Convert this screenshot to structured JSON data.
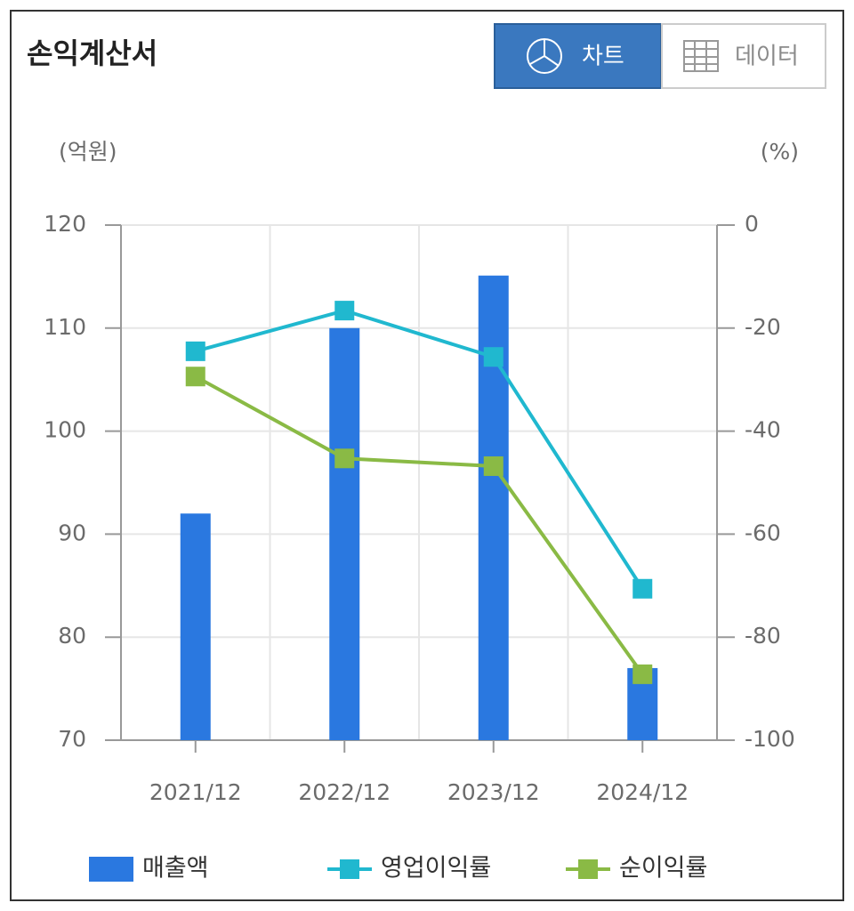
{
  "tabs": [
    "차트",
    "데이터"
  ],
  "chart_data": {
    "type": "bar-line",
    "title": "손익계산서",
    "y_label": "(억원)",
    "y2_label": "(%)",
    "categories": [
      "2021/12",
      "2022/12",
      "2023/12",
      "2024/12"
    ],
    "series": [
      {
        "name": "매출액",
        "type": "bar",
        "color": "#2a78e0",
        "values": [
          92.0,
          110.0,
          115.1,
          77.0
        ]
      },
      {
        "name": "영업이익률",
        "type": "line",
        "axis": "y2",
        "color": "#20b8cf",
        "values": [
          -24.5,
          -16.6,
          -25.6,
          -70.6
        ]
      },
      {
        "name": "순이익률",
        "type": "line",
        "axis": "y2",
        "color": "#8aba45",
        "values": [
          -29.4,
          -45.3,
          -46.8,
          -87.2
        ]
      }
    ],
    "ylim": [
      70,
      120
    ],
    "yticks": [
      70,
      80,
      90,
      100,
      110,
      120
    ],
    "y2lim": [
      -100,
      0
    ],
    "y2ticks": [
      -100,
      -80,
      -60,
      -40,
      -20,
      0
    ],
    "grid": true,
    "legend": "bottom"
  }
}
